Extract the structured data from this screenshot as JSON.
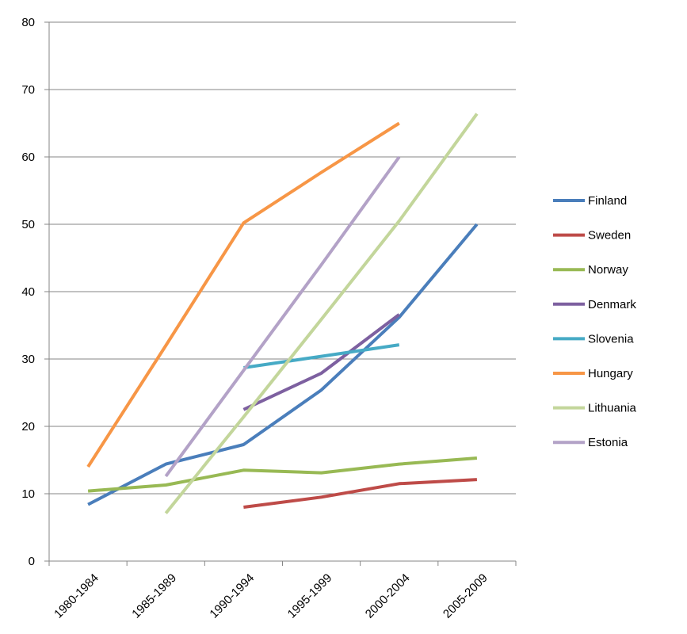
{
  "chart_data": {
    "type": "line",
    "title": "",
    "xlabel": "",
    "ylabel": "",
    "categories": [
      "1980-1984",
      "1985-1989",
      "1990-1994",
      "1995-1999",
      "2000-2004",
      "2005-2009"
    ],
    "ylim": [
      0,
      80
    ],
    "yticks": [
      "0",
      "10",
      "20",
      "30",
      "40",
      "50",
      "60",
      "70",
      "80"
    ],
    "grid": "horizontal",
    "legend_position": "right",
    "series": [
      {
        "name": "Finland",
        "color": "#4a7ebb",
        "values": [
          8.4,
          14.4,
          17.3,
          25.4,
          36.2,
          50.0
        ]
      },
      {
        "name": "Sweden",
        "color": "#be4b48",
        "values": [
          null,
          null,
          8.0,
          9.5,
          11.5,
          12.1
        ]
      },
      {
        "name": "Norway",
        "color": "#98b954",
        "values": [
          10.4,
          11.3,
          13.5,
          13.1,
          14.4,
          15.3
        ]
      },
      {
        "name": "Denmark",
        "color": "#7d60a0",
        "values": [
          null,
          null,
          22.5,
          27.9,
          36.6,
          null
        ]
      },
      {
        "name": "Slovenia",
        "color": "#46aac5",
        "values": [
          null,
          null,
          28.7,
          30.4,
          32.1,
          null
        ]
      },
      {
        "name": "Hungary",
        "color": "#f79646",
        "values": [
          14.0,
          32.0,
          50.2,
          57.7,
          65.0,
          null
        ]
      },
      {
        "name": "Lithuania",
        "color": "#c3d69b",
        "values": [
          null,
          7.1,
          21.4,
          35.9,
          50.5,
          66.4
        ]
      },
      {
        "name": "Estonia",
        "color": "#b3a2c7",
        "values": [
          null,
          12.6,
          28.3,
          44.0,
          60.0,
          null
        ]
      }
    ]
  }
}
